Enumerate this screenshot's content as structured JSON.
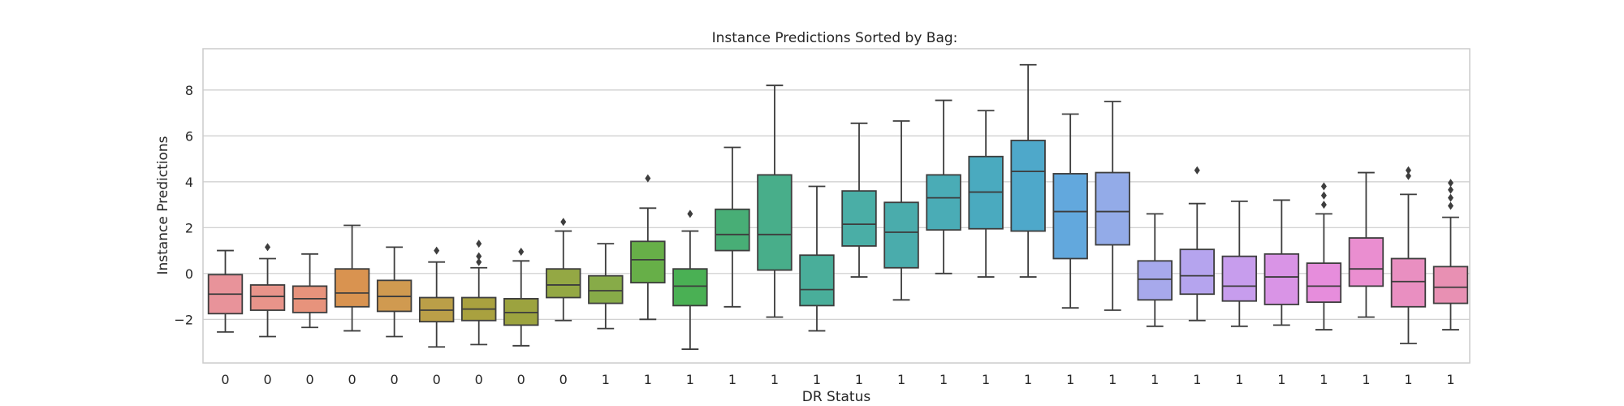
{
  "chart_data": {
    "type": "box",
    "title": "Instance Predictions Sorted by Bag:",
    "xlabel": "DR Status",
    "ylabel": "Instance Predictions",
    "ylim": [
      -3.9,
      9.8
    ],
    "yticks": [
      -2,
      0,
      2,
      4,
      6,
      8
    ],
    "grid": true,
    "categories": [
      "0",
      "0",
      "0",
      "0",
      "0",
      "0",
      "0",
      "0",
      "0",
      "1",
      "1",
      "1",
      "1",
      "1",
      "1",
      "1",
      "1",
      "1",
      "1",
      "1",
      "1",
      "1",
      "1",
      "1",
      "1",
      "1",
      "1",
      "1",
      "1",
      "1"
    ],
    "boxes": [
      {
        "whisker_low": -2.55,
        "q1": -1.75,
        "median": -0.9,
        "q3": -0.05,
        "whisker_high": 1.0,
        "outliers": [],
        "color": "#e8939a"
      },
      {
        "whisker_low": -2.75,
        "q1": -1.6,
        "median": -1.0,
        "q3": -0.5,
        "whisker_high": 0.65,
        "outliers": [
          1.15
        ],
        "color": "#e8948a"
      },
      {
        "whisker_low": -2.35,
        "q1": -1.7,
        "median": -1.1,
        "q3": -0.55,
        "whisker_high": 0.85,
        "outliers": [],
        "color": "#e7937c"
      },
      {
        "whisker_low": -2.5,
        "q1": -1.45,
        "median": -0.85,
        "q3": 0.2,
        "whisker_high": 2.1,
        "outliers": [],
        "color": "#d99350"
      },
      {
        "whisker_low": -2.75,
        "q1": -1.65,
        "median": -1.0,
        "q3": -0.3,
        "whisker_high": 1.15,
        "outliers": [],
        "color": "#d09a50"
      },
      {
        "whisker_low": -3.2,
        "q1": -2.1,
        "median": -1.6,
        "q3": -1.05,
        "whisker_high": 0.5,
        "outliers": [
          1.0
        ],
        "color": "#bb9f48"
      },
      {
        "whisker_low": -3.1,
        "q1": -2.05,
        "median": -1.55,
        "q3": -1.05,
        "whisker_high": 0.25,
        "outliers": [
          0.5,
          0.75,
          1.3
        ],
        "color": "#a9a13f"
      },
      {
        "whisker_low": -3.15,
        "q1": -2.25,
        "median": -1.7,
        "q3": -1.1,
        "whisker_high": 0.55,
        "outliers": [
          0.95
        ],
        "color": "#9ca33f"
      },
      {
        "whisker_low": -2.05,
        "q1": -1.05,
        "median": -0.5,
        "q3": 0.2,
        "whisker_high": 1.85,
        "outliers": [
          2.25
        ],
        "color": "#94a844"
      },
      {
        "whisker_low": -2.4,
        "q1": -1.3,
        "median": -0.75,
        "q3": -0.1,
        "whisker_high": 1.3,
        "outliers": [],
        "color": "#87ab48"
      },
      {
        "whisker_low": -2.0,
        "q1": -0.4,
        "median": 0.6,
        "q3": 1.4,
        "whisker_high": 2.85,
        "outliers": [
          4.15
        ],
        "color": "#67af48"
      },
      {
        "whisker_low": -3.3,
        "q1": -1.4,
        "median": -0.55,
        "q3": 0.2,
        "whisker_high": 1.85,
        "outliers": [
          2.6
        ],
        "color": "#4ab054"
      },
      {
        "whisker_low": -1.45,
        "q1": 1.0,
        "median": 1.7,
        "q3": 2.8,
        "whisker_high": 5.5,
        "outliers": [],
        "color": "#48ae76"
      },
      {
        "whisker_low": -1.9,
        "q1": 0.15,
        "median": 1.7,
        "q3": 4.3,
        "whisker_high": 8.2,
        "outliers": [],
        "color": "#48ae8a"
      },
      {
        "whisker_low": -2.5,
        "q1": -1.4,
        "median": -0.7,
        "q3": 0.8,
        "whisker_high": 3.8,
        "outliers": [],
        "color": "#49ae9a"
      },
      {
        "whisker_low": -0.15,
        "q1": 1.2,
        "median": 2.15,
        "q3": 3.6,
        "whisker_high": 6.55,
        "outliers": [],
        "color": "#4aaea6"
      },
      {
        "whisker_low": -1.15,
        "q1": 0.25,
        "median": 1.8,
        "q3": 3.1,
        "whisker_high": 6.65,
        "outliers": [],
        "color": "#4aacac"
      },
      {
        "whisker_low": 0.0,
        "q1": 1.9,
        "median": 3.3,
        "q3": 4.3,
        "whisker_high": 7.55,
        "outliers": [],
        "color": "#4aacb6"
      },
      {
        "whisker_low": -0.15,
        "q1": 1.95,
        "median": 3.55,
        "q3": 5.1,
        "whisker_high": 7.1,
        "outliers": [],
        "color": "#4aaabf"
      },
      {
        "whisker_low": -0.15,
        "q1": 1.85,
        "median": 4.45,
        "q3": 5.8,
        "whisker_high": 9.1,
        "outliers": [],
        "color": "#4ea8ca"
      },
      {
        "whisker_low": -1.5,
        "q1": 0.65,
        "median": 2.7,
        "q3": 4.35,
        "whisker_high": 6.95,
        "outliers": [],
        "color": "#62a8dd"
      },
      {
        "whisker_low": -1.6,
        "q1": 1.25,
        "median": 2.7,
        "q3": 4.4,
        "whisker_high": 7.5,
        "outliers": [],
        "color": "#93abe8"
      },
      {
        "whisker_low": -2.3,
        "q1": -1.15,
        "median": -0.25,
        "q3": 0.55,
        "whisker_high": 2.6,
        "outliers": [],
        "color": "#a7a9ec"
      },
      {
        "whisker_low": -2.05,
        "q1": -0.9,
        "median": -0.1,
        "q3": 1.05,
        "whisker_high": 3.05,
        "outliers": [
          4.5
        ],
        "color": "#b5a4ee"
      },
      {
        "whisker_low": -2.3,
        "q1": -1.2,
        "median": -0.55,
        "q3": 0.75,
        "whisker_high": 3.15,
        "outliers": [],
        "color": "#c79ded"
      },
      {
        "whisker_low": -2.25,
        "q1": -1.35,
        "median": -0.15,
        "q3": 0.85,
        "whisker_high": 3.2,
        "outliers": [],
        "color": "#d994e6"
      },
      {
        "whisker_low": -2.45,
        "q1": -1.25,
        "median": -0.55,
        "q3": 0.45,
        "whisker_high": 2.6,
        "outliers": [
          3.0,
          3.4,
          3.8
        ],
        "color": "#e68ddc"
      },
      {
        "whisker_low": -1.9,
        "q1": -0.55,
        "median": 0.2,
        "q3": 1.55,
        "whisker_high": 4.4,
        "outliers": [],
        "color": "#ea8ed0"
      },
      {
        "whisker_low": -3.05,
        "q1": -1.45,
        "median": -0.35,
        "q3": 0.65,
        "whisker_high": 3.45,
        "outliers": [
          4.25,
          4.5
        ],
        "color": "#e98fc1"
      },
      {
        "whisker_low": -2.45,
        "q1": -1.3,
        "median": -0.6,
        "q3": 0.3,
        "whisker_high": 2.45,
        "outliers": [
          2.95,
          3.3,
          3.65,
          3.95
        ],
        "color": "#e890b3"
      }
    ]
  }
}
